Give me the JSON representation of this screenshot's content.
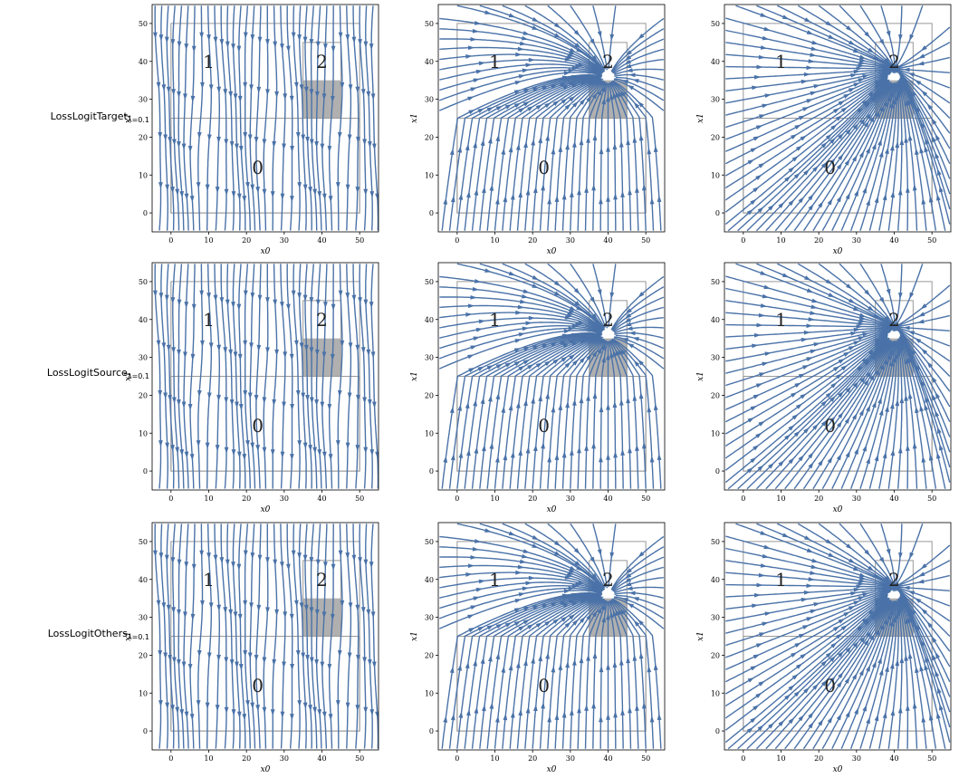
{
  "rows": [
    {
      "label": "LossLogitTarget",
      "subscript": "λ=0.1"
    },
    {
      "label": "LossLogitSource",
      "subscript": "λ=0.1"
    },
    {
      "label": "LossLogitOthers",
      "subscript": "λ=0.1"
    }
  ],
  "chart_data": {
    "type": "streamplot",
    "grid": "3x3",
    "xlabel": "x0",
    "ylabel": "x1",
    "xlim": [
      -5,
      55
    ],
    "ylim": [
      -5,
      55
    ],
    "xticks": [
      0,
      10,
      20,
      30,
      40,
      50
    ],
    "yticks": [
      0,
      10,
      20,
      30,
      40,
      50
    ],
    "stream_color": "#4a72a8",
    "region_labels": [
      {
        "text": "0",
        "x": 23,
        "y": 12
      },
      {
        "text": "1",
        "x": 10,
        "y": 40
      },
      {
        "text": "2",
        "x": 40,
        "y": 40
      }
    ],
    "region_outlines": {
      "outer": [
        [
          0,
          0
        ],
        [
          50,
          0
        ],
        [
          50,
          50
        ],
        [
          0,
          50
        ]
      ],
      "region0": [
        [
          0,
          0
        ],
        [
          50,
          0
        ],
        [
          50,
          25
        ],
        [
          0,
          25
        ]
      ],
      "region2": [
        [
          35,
          25
        ],
        [
          45,
          25
        ],
        [
          45,
          45
        ],
        [
          35,
          45
        ]
      ]
    },
    "shaded_box": {
      "x": [
        35,
        45
      ],
      "y": [
        25,
        35
      ],
      "color": "#b0b0b0"
    },
    "columns": [
      {
        "flow": "downward-mostly-vertical"
      },
      {
        "flow": "converging-toward-region-2-from-below"
      },
      {
        "flow": "converging-toward-region-2-from-all-sides"
      }
    ]
  }
}
